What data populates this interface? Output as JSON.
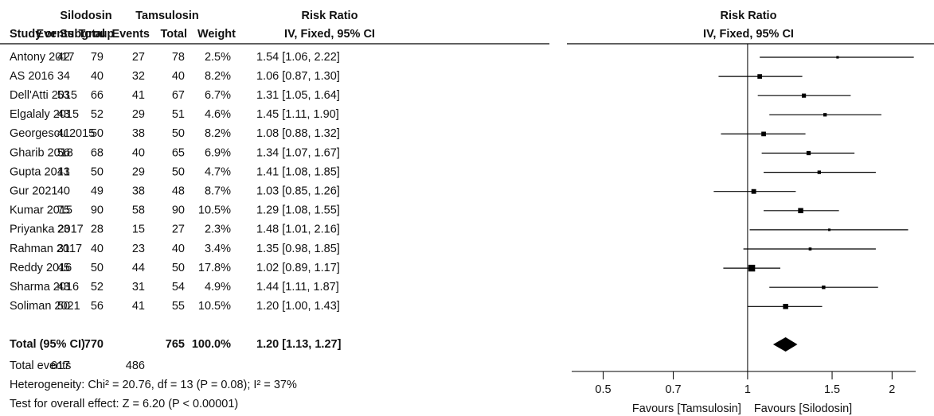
{
  "chart_data": {
    "type": "forest",
    "group_headers": [
      "Silodosin",
      "Tamsulosin",
      "Risk Ratio",
      "Risk Ratio"
    ],
    "column_headers": [
      "Study or Subgroup",
      "Events",
      "Total",
      "Events",
      "Total",
      "Weight",
      "IV, Fixed, 95% CI",
      "IV, Fixed, 95% CI"
    ],
    "categories": [
      "Antony 2017",
      "AS 2016",
      "Dell'Atti 2015",
      "Elgalaly 2015",
      "Georgescu 2015",
      "Gharib 2018",
      "Gupta 2013",
      "Gur 2021",
      "Kumar 2015",
      "Priyanka 2017",
      "Rahman 2017",
      "Reddy 2016",
      "Sharma 2016",
      "Soliman 2021"
    ],
    "silodosin_events": [
      42,
      34,
      53,
      43,
      41,
      56,
      41,
      40,
      75,
      23,
      31,
      45,
      43,
      50
    ],
    "silodosin_total": [
      79,
      40,
      66,
      52,
      50,
      68,
      50,
      49,
      90,
      28,
      40,
      50,
      52,
      56
    ],
    "tamsulosin_events": [
      27,
      32,
      41,
      29,
      38,
      40,
      29,
      38,
      58,
      15,
      23,
      44,
      31,
      41
    ],
    "tamsulosin_total": [
      78,
      40,
      67,
      51,
      50,
      65,
      50,
      48,
      90,
      27,
      40,
      50,
      54,
      55
    ],
    "weights": [
      2.5,
      8.2,
      6.7,
      4.6,
      8.2,
      6.9,
      4.7,
      8.7,
      10.5,
      2.3,
      3.4,
      17.8,
      4.9,
      10.5
    ],
    "weight_labels": [
      "2.5%",
      "8.2%",
      "6.7%",
      "4.6%",
      "8.2%",
      "6.9%",
      "4.7%",
      "8.7%",
      "10.5%",
      "2.3%",
      "3.4%",
      "17.8%",
      "4.9%",
      "10.5%"
    ],
    "rr": [
      1.54,
      1.06,
      1.31,
      1.45,
      1.08,
      1.34,
      1.41,
      1.03,
      1.29,
      1.48,
      1.35,
      1.02,
      1.44,
      1.2
    ],
    "ci_low": [
      1.06,
      0.87,
      1.05,
      1.11,
      0.88,
      1.07,
      1.08,
      0.85,
      1.08,
      1.01,
      0.98,
      0.89,
      1.11,
      1.0
    ],
    "ci_high": [
      2.22,
      1.3,
      1.64,
      1.9,
      1.32,
      1.67,
      1.85,
      1.26,
      1.55,
      2.16,
      1.85,
      1.17,
      1.87,
      1.43
    ],
    "ci_labels": [
      "1.54 [1.06, 2.22]",
      "1.06 [0.87, 1.30]",
      "1.31 [1.05, 1.64]",
      "1.45 [1.11, 1.90]",
      "1.08 [0.88, 1.32]",
      "1.34 [1.07, 1.67]",
      "1.41 [1.08, 1.85]",
      "1.03 [0.85, 1.26]",
      "1.29 [1.08, 1.55]",
      "1.48 [1.01, 2.16]",
      "1.35 [0.98, 1.85]",
      "1.02 [0.89, 1.17]",
      "1.44 [1.11, 1.87]",
      "1.20 [1.00, 1.43]"
    ],
    "total": {
      "label": "Total (95% CI)",
      "silodosin_total": 770,
      "tamsulosin_total": 765,
      "weight": 100,
      "weight_label": "100.0%",
      "rr": 1.2,
      "ci_low": 1.13,
      "ci_high": 1.27,
      "ci_label": "1.20 [1.13, 1.27]"
    },
    "total_events": {
      "label": "Total events",
      "silodosin": 617,
      "tamsulosin": 486
    },
    "heterogeneity": "Heterogeneity: Chi² = 20.76, df = 13 (P = 0.08); I² = 37%",
    "overall_effect": "Test for overall effect: Z = 6.20 (P < 0.00001)",
    "log_scale": true,
    "xlim": [
      0.43,
      2.24
    ],
    "xticks": [
      0.5,
      0.7,
      1,
      1.5,
      2
    ],
    "null_value": 1,
    "xlabel_left": "Favours [Tamsulosin]",
    "xlabel_right": "Favours [Silodosin]",
    "color": "#000000"
  }
}
